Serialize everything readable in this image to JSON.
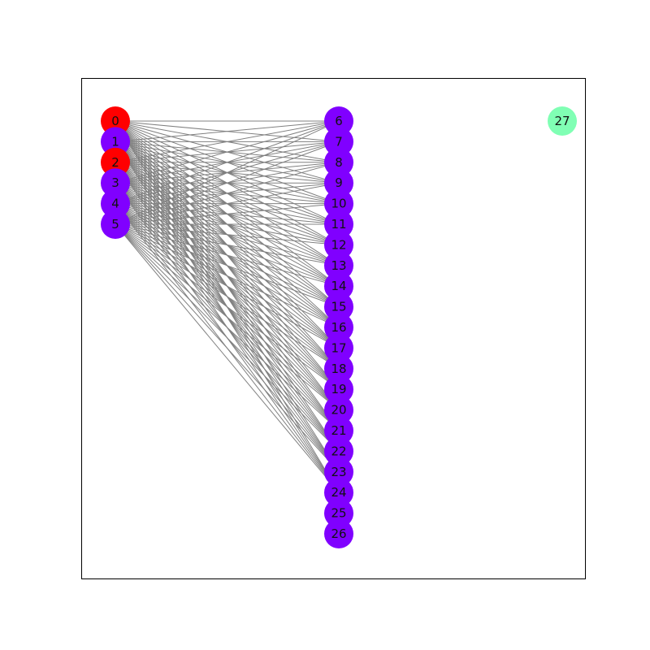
{
  "graph": {
    "colors": {
      "edge": "#808080",
      "frame": "#000000",
      "red": "#ff0000",
      "purple": "#8000ff",
      "green": "#80ffb4"
    },
    "columns": {
      "left": [
        "0",
        "1",
        "2",
        "3",
        "4",
        "5"
      ],
      "middle": [
        "6",
        "7",
        "8",
        "9",
        "10",
        "11",
        "12",
        "13",
        "14",
        "15",
        "16",
        "17",
        "18",
        "19",
        "20",
        "21",
        "22",
        "23",
        "24",
        "25",
        "26"
      ],
      "right": [
        "27"
      ]
    },
    "node_colors": {
      "0": "red",
      "1": "purple",
      "2": "red",
      "3": "purple",
      "4": "purple",
      "5": "purple",
      "6": "purple",
      "7": "purple",
      "8": "purple",
      "9": "purple",
      "10": "purple",
      "11": "purple",
      "12": "purple",
      "13": "purple",
      "14": "purple",
      "15": "purple",
      "16": "purple",
      "17": "purple",
      "18": "purple",
      "19": "purple",
      "20": "purple",
      "21": "purple",
      "22": "purple",
      "23": "purple",
      "24": "purple",
      "25": "purple",
      "26": "purple",
      "27": "green"
    },
    "edges": {
      "from": [
        "0",
        "1",
        "2",
        "3",
        "4",
        "5"
      ],
      "to": [
        "6",
        "7",
        "8",
        "9",
        "10",
        "11",
        "12",
        "13",
        "14",
        "15",
        "16",
        "17",
        "18",
        "19",
        "20",
        "21",
        "22",
        "23",
        "24"
      ]
    }
  }
}
